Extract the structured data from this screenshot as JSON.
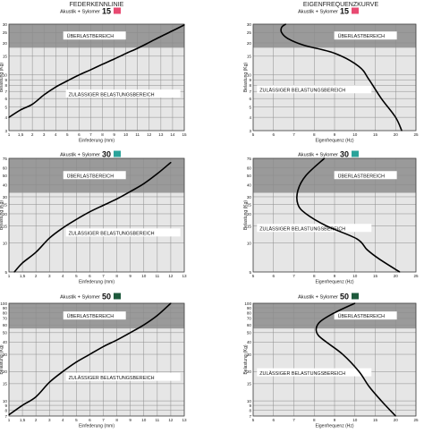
{
  "headers": {
    "left": "FEDERKENNLINIE",
    "right": "EIGENFREQUENZKURVE"
  },
  "colors": {
    "15": "#e84a72",
    "30": "#2aa39a",
    "50": "#1e5a3c",
    "overload": "#9a9a9a",
    "allowed": "#e6e6e6",
    "grid": "#8c8c8c"
  },
  "chart_data": [
    {
      "type": "line",
      "scale": "log-y",
      "row": 1,
      "col": 1,
      "badge_text": "Akustik + Sylomer",
      "badge_number": "15",
      "badge_color": "#e84a72",
      "xlabel": "Einfederung (mm)",
      "ylabel": "Belastung (Kg)",
      "xlim": [
        1,
        15
      ],
      "ylim": [
        3,
        30
      ],
      "xticks": [
        1,
        1.5,
        2,
        3,
        4,
        5,
        6,
        7,
        8,
        9,
        10,
        11,
        12,
        13,
        14,
        15
      ],
      "xtick_labels": [
        "1",
        "1,5",
        "2",
        "3",
        "4",
        "5",
        "6",
        "7",
        "8",
        "9",
        "10",
        "11",
        "12",
        "13",
        "14",
        "15"
      ],
      "yticks": [
        3,
        4,
        5,
        6,
        7,
        8,
        9,
        10,
        15,
        20,
        25,
        30
      ],
      "overload_from": 18,
      "overload_label": "ÜBERLASTBEREICH",
      "allowed_label": "ZULÄSSIGER BELASTUNGSBEREICH",
      "x": [
        1,
        1.5,
        2,
        3,
        4,
        5,
        6,
        7,
        8,
        9,
        10,
        11,
        12,
        13,
        14,
        15
      ],
      "y": [
        4,
        4.7,
        5.3,
        6.5,
        7.7,
        8.8,
        10,
        11.2,
        12.6,
        14.1,
        15.9,
        17.8,
        20.2,
        23,
        26,
        29.5
      ]
    },
    {
      "type": "line",
      "scale": "log-y",
      "row": 1,
      "col": 2,
      "badge_text": "Akustik + Sylomer",
      "badge_number": "15",
      "badge_color": "#e84a72",
      "xlabel": "Eigenfrequenz (Hz)",
      "ylabel": "Belastung (Kg)",
      "xlim": [
        5,
        25
      ],
      "ylim": [
        3,
        30
      ],
      "xticks": [
        5,
        6,
        7,
        8,
        9,
        10,
        15,
        20,
        25
      ],
      "xtick_labels": [
        "5",
        "6",
        "7",
        "8",
        "9",
        "10",
        "15",
        "20",
        "25"
      ],
      "yticks": [
        3,
        4,
        5,
        6,
        7,
        8,
        9,
        10,
        15,
        20,
        25,
        30
      ],
      "overload_from": 18,
      "overload_label": "ÜBERLASTBEREICH",
      "allowed_label": "ZULÄSSIGER BELASTUNGSBEREICH",
      "x": [
        6.6,
        6.4,
        6.4,
        6.7,
        7.5,
        9,
        11,
        13.5,
        16.5,
        20,
        21.5
      ],
      "y": [
        30,
        28,
        25,
        22,
        19,
        16,
        12,
        9,
        6,
        4,
        3
      ]
    },
    {
      "type": "line",
      "scale": "log-y",
      "row": 2,
      "col": 1,
      "badge_text": "Akustik + Sylomer",
      "badge_number": "30",
      "badge_color": "#2aa39a",
      "xlabel": "Einfederung (mm)",
      "ylabel": "Belastung (Kg)",
      "xlim": [
        1,
        13
      ],
      "ylim": [
        5,
        75
      ],
      "xticks": [
        1,
        1.5,
        2,
        3,
        4,
        5,
        6,
        7,
        8,
        9,
        10,
        11,
        12,
        13
      ],
      "xtick_labels": [
        "1",
        "1,5",
        "2",
        "3",
        "4",
        "5",
        "6",
        "7",
        "8",
        "9",
        "10",
        "11",
        "12",
        "13"
      ],
      "yticks": [
        5,
        10,
        15,
        20,
        25,
        30,
        40,
        50,
        60,
        75
      ],
      "overload_from": 33,
      "overload_label": "ÜBERLASTBEREICH",
      "allowed_label": "ZULÄSSIGER BELASTUNGSBEREICH",
      "x": [
        1.2,
        1.5,
        2,
        3,
        4,
        5,
        6,
        7,
        8,
        9,
        10,
        11,
        12
      ],
      "y": [
        5,
        6.2,
        8,
        11.2,
        14.3,
        17.5,
        21,
        24.5,
        28.5,
        34,
        41,
        52,
        68
      ]
    },
    {
      "type": "line",
      "scale": "log-y",
      "row": 2,
      "col": 2,
      "badge_text": "Akustik + Sylomer",
      "badge_number": "30",
      "badge_color": "#2aa39a",
      "xlabel": "Eigenfrequenz (Hz)",
      "ylabel": "Belastung (Kg)",
      "xlim": [
        5,
        25
      ],
      "ylim": [
        5,
        75
      ],
      "xticks": [
        5,
        6,
        7,
        8,
        9,
        10,
        15,
        20,
        25
      ],
      "xtick_labels": [
        "5",
        "6",
        "7",
        "8",
        "9",
        "10",
        "15",
        "20",
        "25"
      ],
      "yticks": [
        5,
        10,
        15,
        20,
        25,
        30,
        40,
        50,
        60,
        75
      ],
      "overload_from": 33,
      "overload_label": "ÜBERLASTBEREICH",
      "allowed_label": "ZULÄSSIGER BELASTUNGSBEREICH",
      "x": [
        8.5,
        7.6,
        7.2,
        7.2,
        7.6,
        8.6,
        10.5,
        13,
        16,
        21
      ],
      "y": [
        75,
        50,
        35,
        25,
        20,
        15,
        11,
        8.5,
        6.8,
        5
      ]
    },
    {
      "type": "line",
      "scale": "log-y",
      "row": 3,
      "col": 1,
      "badge_text": "Akustik + Sylomer",
      "badge_number": "50",
      "badge_color": "#1e5a3c",
      "xlabel": "Einfederung (mm)",
      "ylabel": "Belastung (Kg)",
      "xlim": [
        1,
        13
      ],
      "ylim": [
        7,
        100
      ],
      "xticks": [
        1,
        1.5,
        2,
        3,
        4,
        5,
        6,
        7,
        8,
        9,
        10,
        11,
        12,
        13
      ],
      "xtick_labels": [
        "1",
        "1,5",
        "2",
        "3",
        "4",
        "5",
        "6",
        "7",
        "8",
        "9",
        "10",
        "11",
        "12",
        "13"
      ],
      "yticks": [
        7,
        8,
        9,
        10,
        15,
        20,
        30,
        40,
        50,
        60,
        70,
        80,
        90,
        100
      ],
      "overload_from": 55,
      "overload_label": "ÜBERLASTBEREICH",
      "allowed_label": "ZULÄSSIGER BELASTUNGSBEREICH",
      "x": [
        1,
        1.5,
        2,
        3,
        4,
        5,
        6,
        7,
        8,
        9,
        10,
        11,
        12
      ],
      "y": [
        7.2,
        9,
        11,
        15.5,
        20,
        25,
        30,
        36,
        42,
        50,
        60,
        75,
        100
      ]
    },
    {
      "type": "line",
      "scale": "log-y",
      "row": 3,
      "col": 2,
      "badge_text": "Akustik + Sylomer",
      "badge_number": "50",
      "badge_color": "#1e5a3c",
      "xlabel": "Eigenfrequenz (Hz)",
      "ylabel": "Belastung (Kg)",
      "xlim": [
        5,
        25
      ],
      "ylim": [
        7,
        100
      ],
      "xticks": [
        5,
        6,
        7,
        8,
        9,
        10,
        15,
        20,
        25
      ],
      "xtick_labels": [
        "5",
        "6",
        "7",
        "8",
        "9",
        "10",
        "15",
        "20",
        "25"
      ],
      "yticks": [
        7,
        8,
        9,
        10,
        15,
        20,
        30,
        40,
        50,
        60,
        70,
        80,
        90,
        100
      ],
      "overload_from": 55,
      "overload_label": "ÜBERLASTBEREICH",
      "allowed_label": "ZULÄSSIGER BELASTUNGSBEREICH",
      "x": [
        10,
        9,
        8.3,
        8.1,
        8.2,
        8.6,
        9.4,
        11,
        13.5,
        16.5,
        20
      ],
      "y": [
        100,
        80,
        65,
        55,
        47,
        40,
        30,
        20,
        14,
        10,
        7
      ]
    }
  ]
}
